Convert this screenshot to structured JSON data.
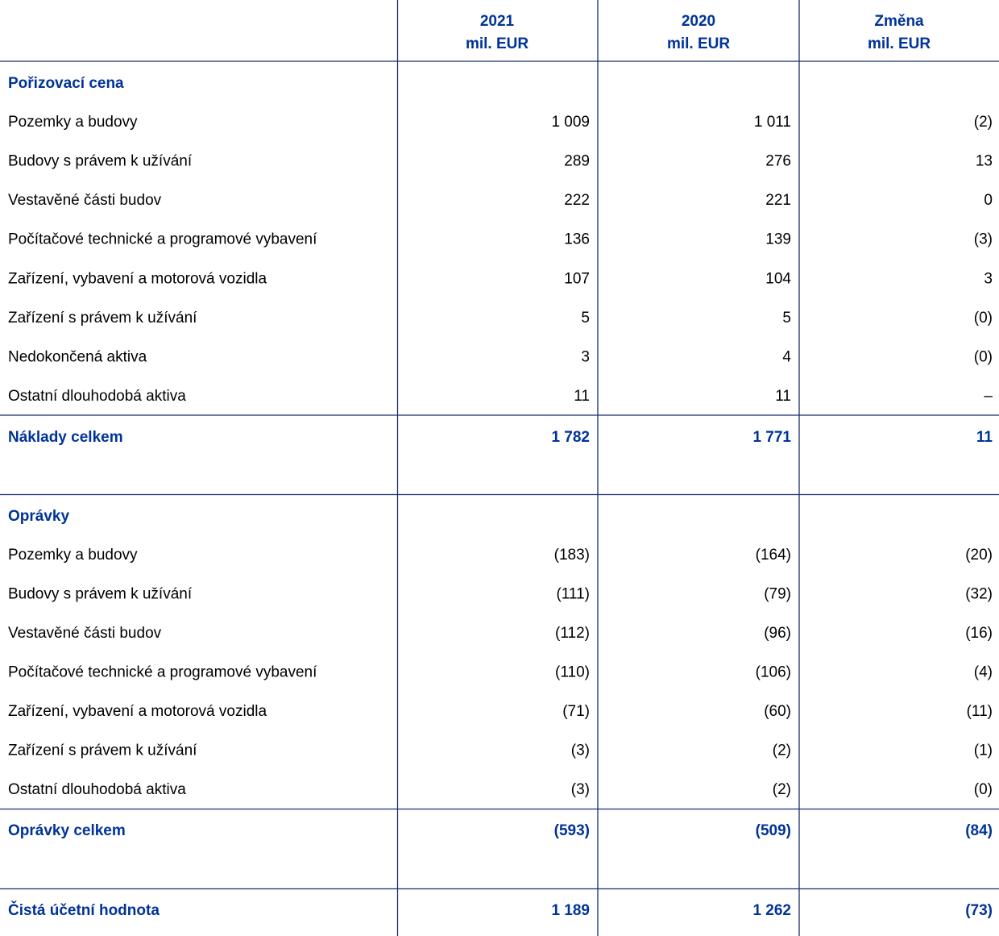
{
  "header": {
    "columns": [
      {
        "year": "2021",
        "unit": "mil. EUR"
      },
      {
        "year": "2020",
        "unit": "mil. EUR"
      },
      {
        "year": "Změna",
        "unit": "mil. EUR"
      }
    ]
  },
  "sections": [
    {
      "title": "Pořizovací cena",
      "rows": [
        {
          "label": "Pozemky a budovy",
          "values": [
            "1 009",
            "1 011",
            "(2)"
          ]
        },
        {
          "label": "Budovy s právem k užívání",
          "values": [
            "289",
            "276",
            "13"
          ]
        },
        {
          "label": "Vestavěné části budov",
          "values": [
            "222",
            "221",
            "0"
          ]
        },
        {
          "label": "Počítačové technické a programové vybavení",
          "values": [
            "136",
            "139",
            "(3)"
          ]
        },
        {
          "label": "Zařízení, vybavení a motorová vozidla",
          "values": [
            "107",
            "104",
            "3"
          ]
        },
        {
          "label": "Zařízení s právem k užívání",
          "values": [
            "5",
            "5",
            "(0)"
          ]
        },
        {
          "label": "Nedokončená aktiva",
          "values": [
            "3",
            "4",
            "(0)"
          ]
        },
        {
          "label": "Ostatní dlouhodobá aktiva",
          "values": [
            "11",
            "11",
            "–"
          ]
        }
      ],
      "total": {
        "label": "Náklady celkem",
        "values": [
          "1 782",
          "1 771",
          "11"
        ]
      }
    },
    {
      "title": "Oprávky",
      "rows": [
        {
          "label": "Pozemky a budovy",
          "values": [
            "(183)",
            "(164)",
            "(20)"
          ]
        },
        {
          "label": "Budovy s právem k užívání",
          "values": [
            "(111)",
            "(79)",
            "(32)"
          ]
        },
        {
          "label": "Vestavěné části budov",
          "values": [
            "(112)",
            "(96)",
            "(16)"
          ]
        },
        {
          "label": "Počítačové technické a programové vybavení",
          "values": [
            "(110)",
            "(106)",
            "(4)"
          ]
        },
        {
          "label": "Zařízení, vybavení a motorová vozidla",
          "values": [
            "(71)",
            "(60)",
            "(11)"
          ]
        },
        {
          "label": "Zařízení s právem k užívání",
          "values": [
            "(3)",
            "(2)",
            "(1)"
          ]
        },
        {
          "label": "Ostatní dlouhodobá aktiva",
          "values": [
            "(3)",
            "(2)",
            "(0)"
          ]
        }
      ],
      "total": {
        "label": "Oprávky celkem",
        "values": [
          "(593)",
          "(509)",
          "(84)"
        ]
      }
    }
  ],
  "net": {
    "label": "Čistá účetní hodnota",
    "values": [
      "1 189",
      "1 262",
      "(73)"
    ]
  }
}
